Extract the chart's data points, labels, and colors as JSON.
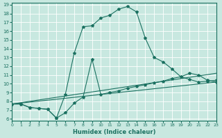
{
  "xlabel": "Humidex (Indice chaleur)",
  "bg_color": "#c8e8e0",
  "grid_color": "#ffffff",
  "line_color": "#1a7060",
  "xlim": [
    0,
    23
  ],
  "ylim": [
    6,
    19
  ],
  "xticks": [
    0,
    1,
    2,
    3,
    4,
    5,
    6,
    7,
    8,
    9,
    10,
    11,
    12,
    13,
    14,
    15,
    16,
    17,
    18,
    19,
    20,
    21,
    22,
    23
  ],
  "yticks": [
    6,
    7,
    8,
    9,
    10,
    11,
    12,
    13,
    14,
    15,
    16,
    17,
    18,
    19
  ],
  "series": [
    {
      "x": [
        0,
        1,
        2,
        3,
        4,
        5,
        6,
        7,
        8,
        9,
        10,
        11,
        12,
        13,
        14,
        15,
        16,
        17,
        18,
        19,
        20,
        21,
        22,
        23
      ],
      "y": [
        7.7,
        7.7,
        7.3,
        7.2,
        7.1,
        6.1,
        8.8,
        13.5,
        16.5,
        16.6,
        17.5,
        17.8,
        18.5,
        18.8,
        18.2,
        15.2,
        13.0,
        12.5,
        11.7,
        10.8,
        10.5,
        10.2,
        10.3,
        10.4
      ],
      "has_markers": true
    },
    {
      "x": [
        0,
        1,
        2,
        3,
        4,
        5,
        6,
        7,
        8,
        9,
        10,
        11,
        12,
        13,
        14,
        15,
        16,
        17,
        18,
        19,
        20,
        21,
        22,
        23
      ],
      "y": [
        7.7,
        7.7,
        7.3,
        7.2,
        7.1,
        6.1,
        6.7,
        7.8,
        8.5,
        12.8,
        8.8,
        9.0,
        9.2,
        9.5,
        9.7,
        9.9,
        10.1,
        10.3,
        10.6,
        10.8,
        11.2,
        11.0,
        10.4,
        10.2
      ],
      "has_markers": true
    },
    {
      "x": [
        0,
        23
      ],
      "y": [
        7.7,
        11.2
      ],
      "has_markers": false
    },
    {
      "x": [
        0,
        23
      ],
      "y": [
        7.7,
        10.2
      ],
      "has_markers": false
    }
  ]
}
